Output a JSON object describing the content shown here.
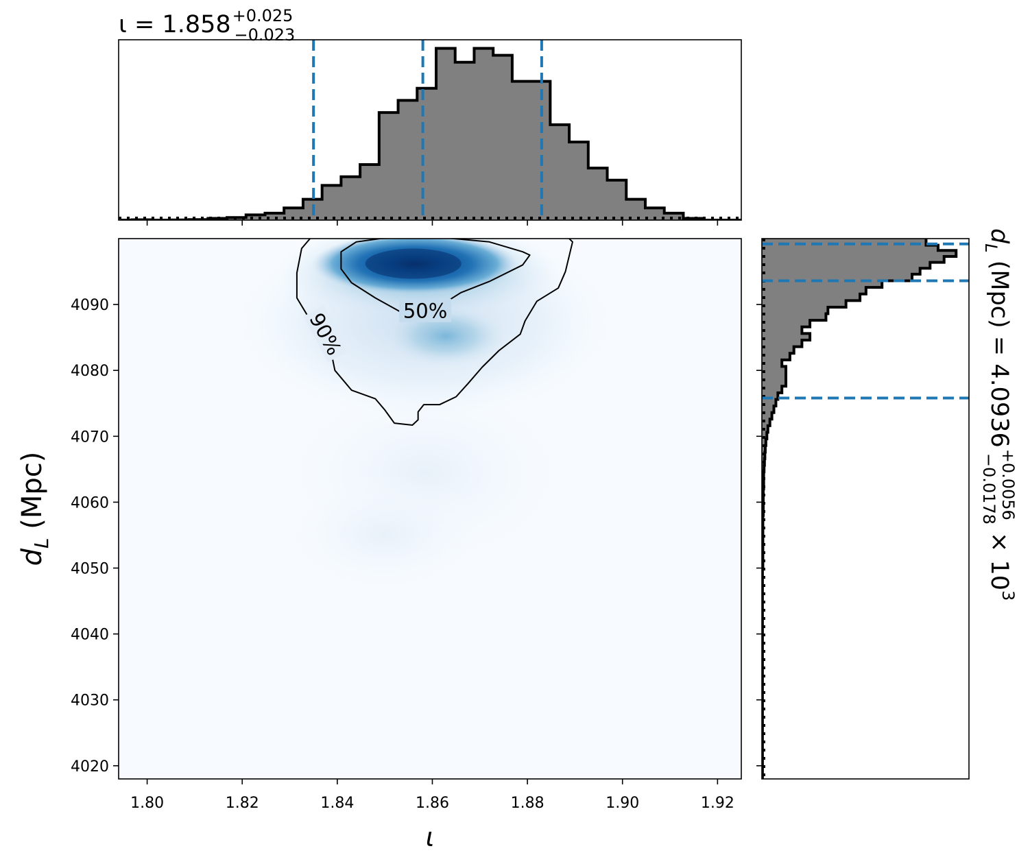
{
  "chart_data": [
    {
      "type": "histogram",
      "variable": "iota",
      "title_main": "ι = 1.858",
      "title_sup": "+0.025",
      "title_sub": "−0.023",
      "xlim": [
        1.794,
        1.925
      ],
      "quantile_lines": [
        1.835,
        1.858,
        1.883
      ],
      "bins": [
        [
          1.7945,
          1.7968,
          0.0
        ],
        [
          1.7968,
          1.8008,
          0.002
        ],
        [
          1.8008,
          1.8048,
          0.0
        ],
        [
          1.8048,
          1.8088,
          0.001
        ],
        [
          1.8088,
          1.8128,
          0.003
        ],
        [
          1.8128,
          1.8168,
          0.01
        ],
        [
          1.8168,
          1.8208,
          0.015
        ],
        [
          1.8208,
          1.8248,
          0.03
        ],
        [
          1.8248,
          1.8288,
          0.04
        ],
        [
          1.8288,
          1.8328,
          0.07
        ],
        [
          1.8328,
          1.8368,
          0.12
        ],
        [
          1.8368,
          1.8408,
          0.2
        ],
        [
          1.8408,
          1.8448,
          0.25
        ],
        [
          1.8448,
          1.8488,
          0.32
        ],
        [
          1.8488,
          1.8528,
          0.62
        ],
        [
          1.8528,
          1.8568,
          0.69
        ],
        [
          1.8568,
          1.8608,
          0.76
        ],
        [
          1.8608,
          1.8648,
          0.99
        ],
        [
          1.8648,
          1.8688,
          0.91
        ],
        [
          1.8688,
          1.8728,
          0.99
        ],
        [
          1.8728,
          1.8768,
          0.95
        ],
        [
          1.8768,
          1.8808,
          0.8
        ],
        [
          1.8808,
          1.8848,
          0.8
        ],
        [
          1.8848,
          1.8888,
          0.55
        ],
        [
          1.8888,
          1.8928,
          0.45
        ],
        [
          1.8928,
          1.8968,
          0.3
        ],
        [
          1.8968,
          1.9008,
          0.23
        ],
        [
          1.9008,
          1.9048,
          0.12
        ],
        [
          1.9048,
          1.9088,
          0.07
        ],
        [
          1.9088,
          1.9128,
          0.04
        ],
        [
          1.9128,
          1.9168,
          0.01
        ],
        [
          1.9168,
          1.925,
          0.0
        ]
      ]
    },
    {
      "type": "heatmap",
      "xlabel": "ι",
      "ylabel_main": "d",
      "ylabel_sub": "L",
      "ylabel_unit": " (Mpc)",
      "xlim": [
        1.794,
        1.925
      ],
      "ylim": [
        4018,
        4100
      ],
      "xticks": [
        "1.80",
        "1.82",
        "1.84",
        "1.86",
        "1.88",
        "1.90",
        "1.92"
      ],
      "xtick_values": [
        1.8,
        1.82,
        1.84,
        1.86,
        1.88,
        1.9,
        1.92
      ],
      "yticks": [
        "4020",
        "4030",
        "4040",
        "4050",
        "4060",
        "4070",
        "4080",
        "4090"
      ],
      "ytick_values": [
        4020,
        4030,
        4040,
        4050,
        4060,
        4070,
        4080,
        4090
      ],
      "colormap": "Blues",
      "peak": {
        "x": 1.856,
        "y": 4096.2
      },
      "contours": [
        {
          "label": "50%",
          "label_at": [
            1.8585,
            4089.0
          ],
          "points": [
            [
              1.849,
              4100.0
            ],
            [
              1.86,
              4100.3
            ],
            [
              1.872,
              4099.5
            ],
            [
              1.879,
              4098.0
            ],
            [
              1.8805,
              4097.5
            ],
            [
              1.879,
              4096.0
            ],
            [
              1.872,
              4093.5
            ],
            [
              1.866,
              4091.8
            ],
            [
              1.8605,
              4089.3
            ],
            [
              1.8535,
              4088.8
            ],
            [
              1.848,
              4091.0
            ],
            [
              1.843,
              4093.3
            ],
            [
              1.8408,
              4095.4
            ],
            [
              1.8408,
              4098.0
            ],
            [
              1.844,
              4099.5
            ],
            [
              1.849,
              4100.0
            ]
          ]
        },
        {
          "label": "90%",
          "label_at": [
            1.8375,
            4085.5
          ],
          "points": [
            [
              1.8345,
              4100.2
            ],
            [
              1.8545,
              4100.3
            ],
            [
              1.8745,
              4100.3
            ],
            [
              1.8885,
              4100.2
            ],
            [
              1.8895,
              4099.5
            ],
            [
              1.888,
              4095.0
            ],
            [
              1.8865,
              4092.5
            ],
            [
              1.882,
              4090.5
            ],
            [
              1.8795,
              4087.5
            ],
            [
              1.8785,
              4085.5
            ],
            [
              1.874,
              4083.0
            ],
            [
              1.8705,
              4080.5
            ],
            [
              1.8675,
              4078.0
            ],
            [
              1.865,
              4076.0
            ],
            [
              1.8615,
              4074.8
            ],
            [
              1.8582,
              4074.8
            ],
            [
              1.857,
              4073.7
            ],
            [
              1.857,
              4072.5
            ],
            [
              1.8558,
              4071.7
            ],
            [
              1.852,
              4072.0
            ],
            [
              1.85,
              4074.0
            ],
            [
              1.848,
              4075.7
            ],
            [
              1.843,
              4077.0
            ],
            [
              1.8395,
              4080.0
            ],
            [
              1.8385,
              4083.5
            ],
            [
              1.8375,
              4085.2
            ],
            [
              1.834,
              4088.0
            ],
            [
              1.8315,
              4091.0
            ],
            [
              1.8315,
              4094.8
            ],
            [
              1.8325,
              4098.5
            ],
            [
              1.8345,
              4100.2
            ]
          ]
        }
      ]
    },
    {
      "type": "histogram",
      "orientation": "horizontal",
      "variable": "d_L",
      "label_main": "d",
      "label_sub": "L",
      "label_rest": " (Mpc) = 4.0936",
      "label_sup": "+0.0056",
      "label_subval": "−0.0178",
      "label_tail": " × 10",
      "label_exp": "3",
      "ylim": [
        4018,
        4100
      ],
      "quantile_lines": [
        4099.2,
        4093.6,
        4075.8
      ],
      "bins": [
        [
          4099.0,
          4100.0,
          0.82
        ],
        [
          4098.2,
          4099.0,
          0.88
        ],
        [
          4097.3,
          4098.2,
          0.97
        ],
        [
          4096.4,
          4097.3,
          0.91
        ],
        [
          4095.5,
          4096.4,
          0.84
        ],
        [
          4094.6,
          4095.5,
          0.79
        ],
        [
          4093.6,
          4094.6,
          0.75
        ],
        [
          4092.6,
          4093.6,
          0.6
        ],
        [
          4091.6,
          4092.6,
          0.52
        ],
        [
          4090.6,
          4091.6,
          0.49
        ],
        [
          4089.6,
          4090.6,
          0.42
        ],
        [
          4088.6,
          4089.6,
          0.33
        ],
        [
          4087.6,
          4088.6,
          0.32
        ],
        [
          4086.6,
          4087.6,
          0.24
        ],
        [
          4085.6,
          4086.6,
          0.2
        ],
        [
          4084.6,
          4085.6,
          0.24
        ],
        [
          4083.6,
          4084.6,
          0.2
        ],
        [
          4082.6,
          4083.6,
          0.16
        ],
        [
          4081.6,
          4082.6,
          0.14
        ],
        [
          4080.6,
          4081.6,
          0.1
        ],
        [
          4079.6,
          4080.6,
          0.12
        ],
        [
          4078.6,
          4079.6,
          0.12
        ],
        [
          4077.6,
          4078.6,
          0.12
        ],
        [
          4076.6,
          4077.6,
          0.1
        ],
        [
          4075.6,
          4076.6,
          0.08
        ],
        [
          4074.6,
          4075.6,
          0.07
        ],
        [
          4073.6,
          4074.6,
          0.06
        ],
        [
          4072.6,
          4073.6,
          0.05
        ],
        [
          4071.6,
          4072.6,
          0.04
        ],
        [
          4070.6,
          4071.6,
          0.03
        ],
        [
          4069.6,
          4070.6,
          0.025
        ],
        [
          4068.6,
          4069.6,
          0.02
        ],
        [
          4067.6,
          4068.6,
          0.017
        ],
        [
          4066.6,
          4067.6,
          0.015
        ],
        [
          4065.6,
          4066.6,
          0.013
        ],
        [
          4064.6,
          4065.6,
          0.011
        ],
        [
          4062.0,
          4064.6,
          0.009
        ],
        [
          4058.0,
          4062.0,
          0.007
        ],
        [
          4050.0,
          4058.0,
          0.005
        ],
        [
          4018.0,
          4050.0,
          0.003
        ]
      ]
    }
  ]
}
